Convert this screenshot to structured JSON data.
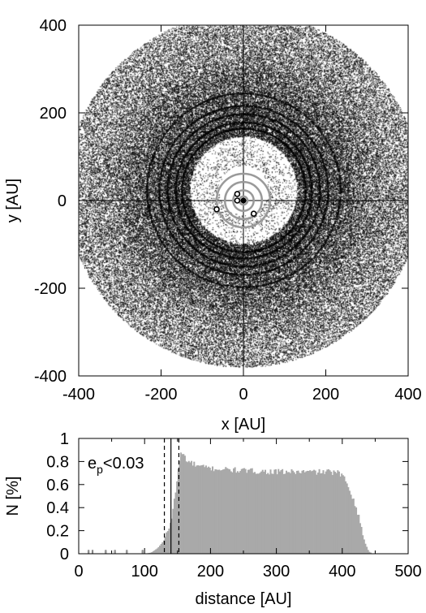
{
  "chart_data": [
    {
      "type": "scatter",
      "title": "",
      "xlabel": "x [AU]",
      "ylabel": "y [AU]",
      "xlim": [
        -400,
        400
      ],
      "ylim": [
        -400,
        400
      ],
      "xticks": [
        -400,
        -200,
        0,
        200,
        400
      ],
      "yticks": [
        -400,
        -200,
        0,
        200,
        400
      ],
      "grid": false,
      "crosshair_at_origin": true,
      "disk": {
        "inner_edge_au": 130,
        "outer_edge_au": 430,
        "dense_edge_au": 300,
        "narrow_rings_au": [
          150,
          165,
          185,
          205,
          235
        ]
      },
      "central_star": {
        "x": 0,
        "y": 0
      },
      "orbit_circles_au": [
        10,
        25,
        45,
        65
      ],
      "planets": [
        {
          "x": -15,
          "y": 15
        },
        {
          "x": -15,
          "y": 0
        },
        {
          "x": -65,
          "y": -20
        },
        {
          "x": 25,
          "y": -30
        }
      ],
      "point_color": "#000000",
      "orbit_color": "#9a9a9a"
    },
    {
      "type": "histogram",
      "title": "",
      "xlabel": "distance [AU]",
      "ylabel": "N [%]",
      "xlim": [
        0,
        500
      ],
      "ylim": [
        0,
        1
      ],
      "xticks": [
        0,
        100,
        200,
        300,
        400,
        500
      ],
      "yticks": [
        "0",
        "0.2",
        "0.4",
        "0.6",
        "0.8",
        "1"
      ],
      "annotation": {
        "base": "e",
        "subscript": "p",
        "suffix": "<0.03"
      },
      "fill_color": "#a9a9a9",
      "solid_line_x": 140,
      "dashed_lines_x": [
        130,
        152
      ],
      "bin_width": 2,
      "sparse_bins": [
        [
          14,
          0.03
        ],
        [
          20,
          0.03
        ],
        [
          40,
          0.03
        ],
        [
          54,
          0.03
        ],
        [
          72,
          0.03
        ],
        [
          96,
          0.03
        ]
      ],
      "profile": [
        [
          100,
          0.0
        ],
        [
          110,
          0.01
        ],
        [
          120,
          0.05
        ],
        [
          130,
          0.12
        ],
        [
          140,
          0.28
        ],
        [
          146,
          0.5
        ],
        [
          150,
          0.68
        ],
        [
          155,
          0.88
        ],
        [
          160,
          0.85
        ],
        [
          165,
          0.8
        ],
        [
          170,
          0.79
        ],
        [
          180,
          0.76
        ],
        [
          200,
          0.74
        ],
        [
          250,
          0.72
        ],
        [
          300,
          0.71
        ],
        [
          350,
          0.71
        ],
        [
          380,
          0.71
        ],
        [
          395,
          0.7
        ],
        [
          405,
          0.64
        ],
        [
          412,
          0.55
        ],
        [
          420,
          0.42
        ],
        [
          428,
          0.25
        ],
        [
          434,
          0.1
        ],
        [
          440,
          0.02
        ],
        [
          446,
          0.0
        ]
      ]
    }
  ]
}
